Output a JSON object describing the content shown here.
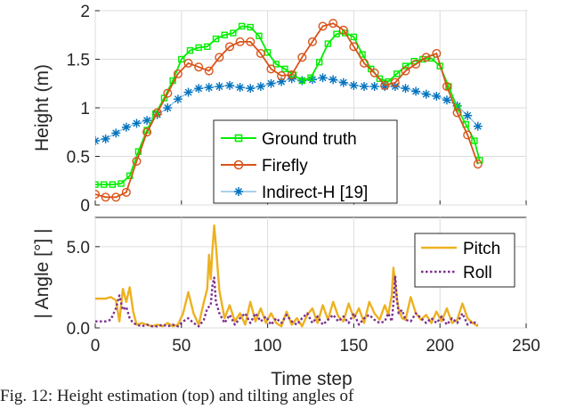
{
  "chart_data": [
    {
      "type": "line",
      "ylabel": "Height (m)",
      "xlim": [
        0,
        250
      ],
      "ylim": [
        0,
        2
      ],
      "yticks": [
        "0",
        "0.5",
        "1",
        "1.5",
        "2"
      ],
      "grid": true,
      "legend_position": "center-inside",
      "series": [
        {
          "name": "Ground truth",
          "color": "#00ee00",
          "marker": "square",
          "x": [
            0,
            5,
            10,
            15,
            20,
            25,
            30,
            35,
            40,
            45,
            50,
            55,
            60,
            65,
            70,
            75,
            80,
            85,
            90,
            95,
            100,
            105,
            110,
            115,
            120,
            125,
            130,
            135,
            140,
            145,
            150,
            155,
            160,
            165,
            170,
            175,
            180,
            185,
            190,
            195,
            200,
            205,
            210,
            215,
            220,
            223
          ],
          "y": [
            0.21,
            0.21,
            0.21,
            0.22,
            0.3,
            0.55,
            0.77,
            0.94,
            1.1,
            1.28,
            1.5,
            1.59,
            1.62,
            1.63,
            1.71,
            1.75,
            1.77,
            1.84,
            1.83,
            1.74,
            1.57,
            1.45,
            1.4,
            1.34,
            1.28,
            1.31,
            1.47,
            1.66,
            1.76,
            1.77,
            1.73,
            1.55,
            1.4,
            1.3,
            1.27,
            1.35,
            1.43,
            1.48,
            1.5,
            1.51,
            1.43,
            1.22,
            1.0,
            0.83,
            0.66,
            0.46
          ]
        },
        {
          "name": "Firefly",
          "color": "#d95319",
          "marker": "circle",
          "x": [
            0,
            6,
            12,
            18,
            24,
            30,
            36,
            42,
            48,
            54,
            60,
            66,
            72,
            78,
            84,
            90,
            96,
            102,
            108,
            114,
            120,
            126,
            132,
            138,
            144,
            150,
            156,
            162,
            168,
            174,
            180,
            186,
            192,
            198,
            204,
            210,
            216,
            222
          ],
          "y": [
            0.11,
            0.08,
            0.08,
            0.13,
            0.45,
            0.75,
            0.95,
            1.15,
            1.35,
            1.46,
            1.42,
            1.38,
            1.52,
            1.63,
            1.68,
            1.68,
            1.56,
            1.4,
            1.33,
            1.34,
            1.52,
            1.68,
            1.84,
            1.87,
            1.8,
            1.63,
            1.46,
            1.36,
            1.23,
            1.26,
            1.38,
            1.45,
            1.52,
            1.56,
            1.22,
            0.95,
            0.72,
            0.42
          ]
        },
        {
          "name": "Indirect-H [19]",
          "color": "#0072bd",
          "marker": "asterisk",
          "x": [
            0,
            6,
            12,
            18,
            24,
            30,
            36,
            42,
            48,
            54,
            60,
            66,
            72,
            78,
            84,
            90,
            96,
            102,
            108,
            114,
            120,
            126,
            132,
            138,
            144,
            150,
            156,
            162,
            168,
            174,
            180,
            186,
            192,
            198,
            204,
            210,
            216,
            222
          ],
          "y": [
            0.66,
            0.68,
            0.74,
            0.8,
            0.84,
            0.87,
            0.93,
            1.0,
            1.09,
            1.16,
            1.2,
            1.21,
            1.22,
            1.23,
            1.21,
            1.2,
            1.22,
            1.25,
            1.27,
            1.3,
            1.28,
            1.29,
            1.31,
            1.29,
            1.26,
            1.23,
            1.22,
            1.22,
            1.22,
            1.22,
            1.2,
            1.17,
            1.14,
            1.12,
            1.08,
            1.02,
            0.92,
            0.81
          ]
        }
      ]
    },
    {
      "type": "line",
      "xlabel": "Time step",
      "ylabel": "| Angle [°] |",
      "xlim": [
        0,
        250
      ],
      "ylim": [
        0,
        6.8
      ],
      "xticks": [
        "0",
        "50",
        "100",
        "150",
        "200",
        "250"
      ],
      "yticks": [
        "0.0",
        "5.0"
      ],
      "grid": true,
      "legend_position": "top-right",
      "series": [
        {
          "name": "Pitch",
          "color": "#edb120",
          "style": "solid",
          "x": [
            0,
            3,
            6,
            9,
            12,
            14,
            16,
            18,
            20,
            22,
            24,
            27,
            30,
            33,
            36,
            39,
            42,
            45,
            48,
            51,
            54,
            57,
            60,
            63,
            65,
            66,
            67,
            68,
            69,
            70,
            72,
            75,
            78,
            81,
            84,
            87,
            90,
            93,
            96,
            99,
            102,
            105,
            108,
            111,
            114,
            117,
            120,
            123,
            126,
            129,
            132,
            135,
            138,
            141,
            144,
            147,
            150,
            153,
            156,
            159,
            162,
            165,
            168,
            170,
            172,
            173,
            174,
            175,
            176,
            178,
            180,
            183,
            186,
            189,
            192,
            195,
            198,
            201,
            204,
            207,
            210,
            213,
            216,
            219,
            222
          ],
          "y": [
            1.8,
            1.8,
            1.8,
            1.9,
            1.7,
            0.4,
            2.4,
            1.6,
            2.5,
            1.0,
            0.2,
            0.3,
            0.2,
            0.1,
            0.2,
            0.1,
            0.3,
            0.1,
            0.2,
            0.9,
            2.2,
            0.9,
            0.2,
            1.6,
            2.4,
            4.5,
            3.0,
            4.8,
            6.3,
            5.1,
            2.3,
            0.6,
            1.4,
            0.4,
            0.9,
            0.2,
            1.6,
            0.4,
            1.2,
            0.3,
            0.9,
            0.3,
            0.1,
            1.0,
            0.2,
            0.6,
            0.1,
            0.8,
            1.2,
            0.3,
            1.4,
            0.5,
            1.6,
            0.7,
            0.4,
            1.5,
            0.6,
            1.2,
            0.3,
            1.6,
            0.9,
            0.5,
            1.4,
            0.8,
            2.0,
            3.7,
            2.7,
            1.8,
            1.2,
            0.6,
            0.5,
            1.9,
            0.9,
            0.5,
            0.8,
            0.3,
            1.0,
            0.4,
            1.2,
            0.3,
            0.5,
            1.5,
            0.6,
            0.3,
            0.1
          ]
        },
        {
          "name": "Roll",
          "color": "#7e2f8e",
          "style": "dotted",
          "x": [
            0,
            3,
            6,
            9,
            12,
            14,
            16,
            18,
            20,
            22,
            24,
            27,
            30,
            33,
            36,
            39,
            42,
            45,
            48,
            51,
            54,
            57,
            60,
            63,
            65,
            67,
            68,
            69,
            70,
            72,
            75,
            78,
            81,
            84,
            87,
            90,
            93,
            96,
            99,
            102,
            105,
            108,
            111,
            114,
            117,
            120,
            123,
            126,
            129,
            132,
            135,
            138,
            141,
            144,
            147,
            150,
            153,
            156,
            159,
            162,
            165,
            168,
            170,
            172,
            173,
            174,
            175,
            176,
            178,
            180,
            183,
            186,
            189,
            192,
            195,
            198,
            201,
            204,
            207,
            210,
            213,
            216,
            219,
            222
          ],
          "y": [
            0.4,
            0.4,
            0.4,
            0.5,
            1.2,
            2.0,
            1.1,
            1.3,
            0.6,
            0.3,
            0.2,
            0.1,
            0.2,
            0.1,
            0.1,
            0.2,
            0.1,
            0.2,
            0.1,
            0.4,
            0.6,
            0.3,
            0.1,
            0.5,
            1.2,
            1.4,
            2.6,
            3.1,
            1.6,
            0.9,
            0.3,
            0.8,
            0.2,
            0.6,
            0.9,
            0.3,
            0.9,
            0.4,
            0.7,
            0.2,
            0.6,
            0.3,
            0.8,
            0.4,
            0.2,
            0.6,
            0.9,
            0.3,
            0.7,
            0.2,
            0.5,
            0.8,
            0.4,
            0.7,
            0.3,
            0.9,
            0.2,
            0.6,
            0.8,
            0.5,
            0.3,
            0.4,
            0.9,
            0.4,
            1.5,
            3.2,
            1.8,
            0.9,
            1.1,
            0.5,
            0.4,
            0.9,
            0.6,
            0.3,
            0.6,
            0.3,
            0.7,
            0.2,
            0.6,
            0.3,
            0.9,
            0.2,
            0.4,
            0.2
          ]
        }
      ]
    }
  ],
  "caption": "Fig. 12: Height estimation (top) and tilting angles of"
}
